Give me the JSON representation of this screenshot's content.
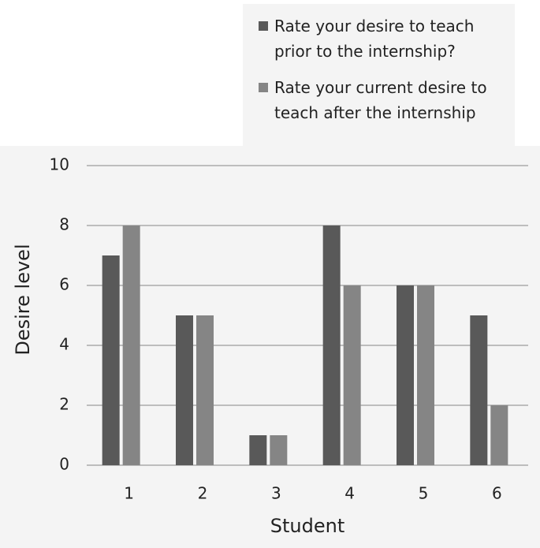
{
  "chart_data": {
    "type": "bar",
    "x_label": "Student",
    "y_label": "Desire level",
    "categories": [
      "1",
      "2",
      "3",
      "4",
      "5",
      "6"
    ],
    "series": [
      {
        "name": "Rate your desire to teach prior to the internship?",
        "color": "#595959",
        "values": [
          7,
          5,
          1,
          8,
          6,
          5
        ]
      },
      {
        "name": "Rate your current desire to teach after the internship",
        "color": "#858585",
        "values": [
          8,
          5,
          1,
          6,
          6,
          2
        ]
      }
    ],
    "ylim": [
      0,
      10
    ],
    "yticks": [
      0,
      2,
      4,
      6,
      8,
      10
    ],
    "grid": true,
    "legend": "top-right"
  }
}
